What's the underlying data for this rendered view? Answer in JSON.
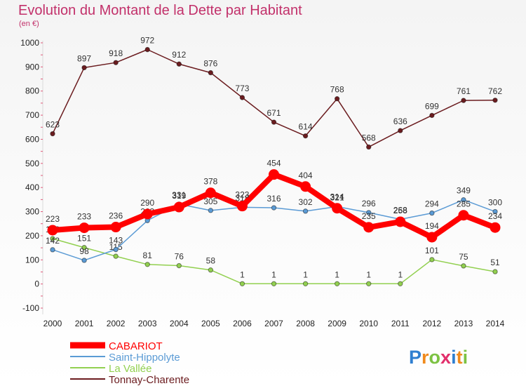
{
  "chart_data": {
    "type": "line",
    "title": "Evolution du Montant de la Dette par Habitant",
    "subtitle": "(en €)",
    "x": [
      "2000",
      "2001",
      "2002",
      "2003",
      "2004",
      "2005",
      "2006",
      "2007",
      "2008",
      "2009",
      "2010",
      "2011",
      "2012",
      "2013",
      "2014"
    ],
    "ylim": [
      -100,
      1000
    ],
    "yticks": [
      -100,
      0,
      100,
      200,
      300,
      400,
      500,
      600,
      700,
      800,
      900,
      1000
    ],
    "grid": false,
    "legend_position": "bottom-left",
    "series": [
      {
        "name": "Tonnay-Charente",
        "color": "#6b1c1f",
        "values": [
          623,
          897,
          918,
          972,
          912,
          876,
          773,
          671,
          614,
          768,
          568,
          636,
          699,
          761,
          762
        ]
      },
      {
        "name": "La Vallée",
        "color": "#92d050",
        "values": [
          188,
          151,
          115,
          81,
          76,
          58,
          1,
          1,
          1,
          1,
          1,
          1,
          101,
          75,
          51
        ]
      },
      {
        "name": "Saint-Hippolyte",
        "color": "#5b9bd5",
        "values": [
          142,
          98,
          143,
          263,
          331,
          305,
          318,
          316,
          302,
          321,
          296,
          268,
          294,
          349,
          300
        ]
      },
      {
        "name": "CABARIOT",
        "color": "#ff0000",
        "values": [
          223,
          233,
          236,
          290,
          319,
          378,
          323,
          454,
          404,
          314,
          235,
          258,
          194,
          285,
          234
        ]
      }
    ],
    "legend": [
      "CABARIOT",
      "Saint-Hippolyte",
      "La Vallée",
      "Tonnay-Charente"
    ]
  },
  "logo": {
    "text": "Proxiti",
    "letters": [
      {
        "ch": "P",
        "color": "#2f7fd0"
      },
      {
        "ch": "r",
        "color": "#f08a1c"
      },
      {
        "ch": "o",
        "color": "#7cc242"
      },
      {
        "ch": "x",
        "color": "#e2306c"
      },
      {
        "ch": "i",
        "color": "#2f7fd0"
      },
      {
        "ch": "t",
        "color": "#f08a1c"
      },
      {
        "ch": "i",
        "color": "#7cc242"
      }
    ]
  }
}
